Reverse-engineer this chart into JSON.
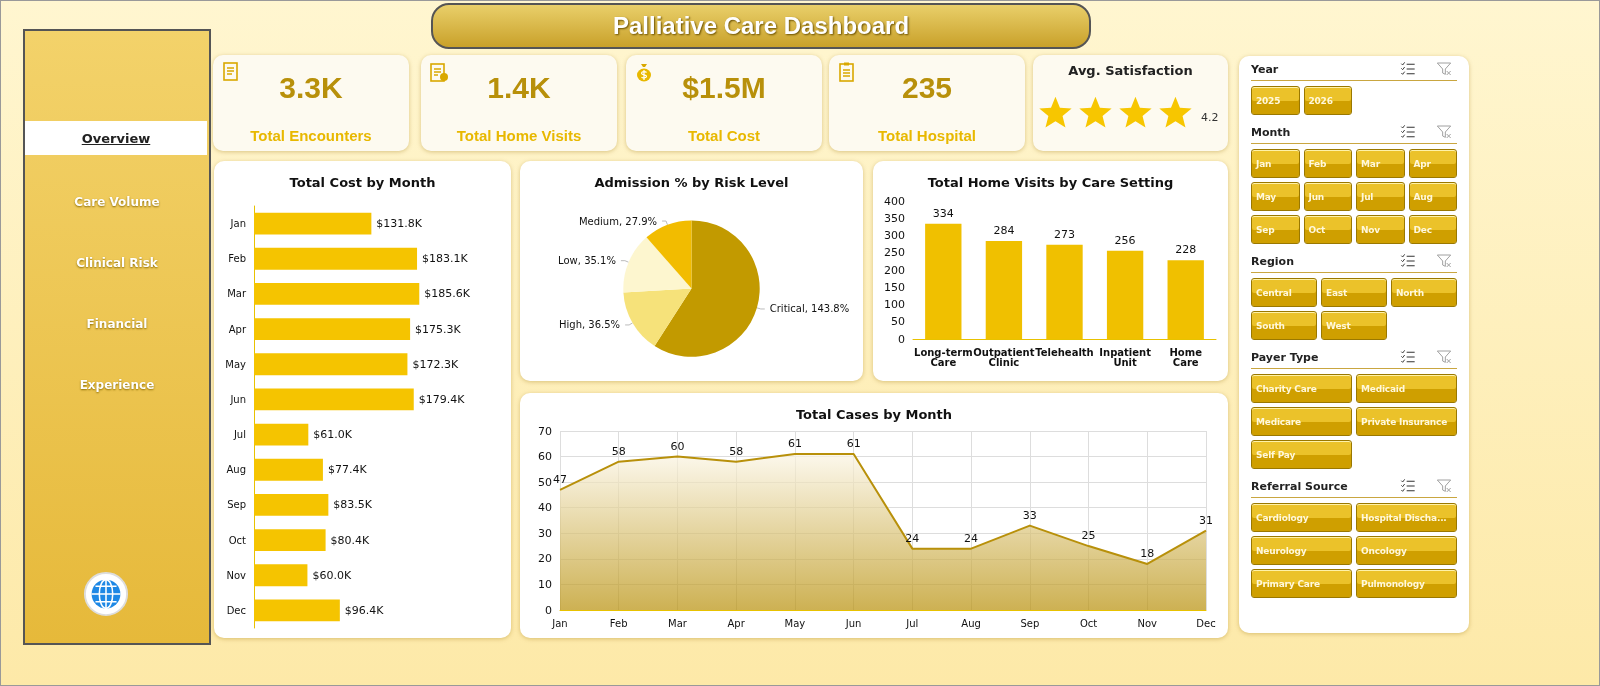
{
  "chart_data": [
    {
      "type": "other",
      "title": "Palliative Care Dashboard",
      "annotations": [
        "3.3K",
        "Total Encounters",
        "1.4K",
        "Total Home Visits",
        "$1.5M",
        "Total Cost",
        "235",
        "Total Hospital",
        "Avg. Satisfaction",
        "4.2"
      ]
    },
    {
      "type": "other",
      "annotations": [
        "Overview",
        "Care Volume",
        "Clinical Risk",
        "Financial",
        "Experience"
      ]
    },
    {
      "type": "bar",
      "orientation": "horizontal",
      "title": "Total Cost by Month",
      "categories": [
        "Jan",
        "Feb",
        "Mar",
        "Apr",
        "May",
        "Jun",
        "Jul",
        "Aug",
        "Sep",
        "Oct",
        "Nov",
        "Dec"
      ],
      "values": [
        131.8,
        183.1,
        185.6,
        175.3,
        172.3,
        179.4,
        61.0,
        77.4,
        83.5,
        80.4,
        60.0,
        96.4
      ],
      "value_labels": [
        "$131.8K",
        "$183.1K",
        "$185.6K",
        "$175.3K",
        "$172.3K",
        "$179.4K",
        "$61.0K",
        "$77.4K",
        "$83.5K",
        "$80.4K",
        "$60.0K",
        "$96.4K"
      ],
      "color": "#f5c400",
      "grid": false
    },
    {
      "type": "pie",
      "title": "Admission % by Risk Level",
      "categories": [
        "Critical",
        "High",
        "Low",
        "Medium"
      ],
      "values": [
        143.8,
        36.5,
        35.1,
        27.9
      ],
      "value_labels": [
        "143.8%",
        "36.5%",
        "35.1%",
        "27.9%"
      ],
      "colors": [
        "#c29a00",
        "#f6e27a",
        "#fdf6cf",
        "#f2bc00"
      ]
    },
    {
      "type": "bar",
      "title": "Total Home Visits by Care Setting",
      "categories": [
        "Long-term Care",
        "Outpatient Clinic",
        "Telehealth",
        "Inpatient Unit",
        "Home Care"
      ],
      "values": [
        334,
        284,
        273,
        256,
        228
      ],
      "color": "#f0c000",
      "ylim": [
        0,
        400
      ],
      "yticks": [
        0,
        50,
        100,
        150,
        200,
        250,
        300,
        350,
        400
      ],
      "data_labels": true,
      "grid": false
    },
    {
      "type": "area",
      "title": "Total Cases by Month",
      "categories": [
        "Jan",
        "Feb",
        "Mar",
        "Apr",
        "May",
        "Jun",
        "Jul",
        "Aug",
        "Sep",
        "Oct",
        "Nov",
        "Dec"
      ],
      "values": [
        47,
        58,
        60,
        58,
        61,
        61,
        24,
        24,
        33,
        25,
        18,
        31
      ],
      "color": "#b8900a",
      "ylim": [
        0,
        70
      ],
      "yticks": [
        0,
        10,
        20,
        30,
        40,
        50,
        60,
        70
      ],
      "data_labels": true,
      "grid": true,
      "marker": "none"
    },
    {
      "type": "other",
      "title": "Year",
      "annotations": [
        "2025",
        "2026"
      ]
    },
    {
      "type": "other",
      "title": "Month",
      "annotations": [
        "Jan",
        "Feb",
        "Mar",
        "Apr",
        "May",
        "Jun",
        "Jul",
        "Aug",
        "Sep",
        "Oct",
        "Nov",
        "Dec"
      ]
    },
    {
      "type": "other",
      "title": "Region",
      "annotations": [
        "Central",
        "East",
        "North",
        "South",
        "West"
      ]
    },
    {
      "type": "other",
      "title": "Payer Type",
      "annotations": [
        "Charity Care",
        "Medicaid",
        "Medicare",
        "Private Insurance",
        "Self Pay"
      ]
    },
    {
      "type": "other",
      "title": "Referral Source",
      "annotations": [
        "Cardiology",
        "Hospital Discha...",
        "Neurology",
        "Oncology",
        "Primary Care",
        "Pulmonology"
      ]
    }
  ]
}
